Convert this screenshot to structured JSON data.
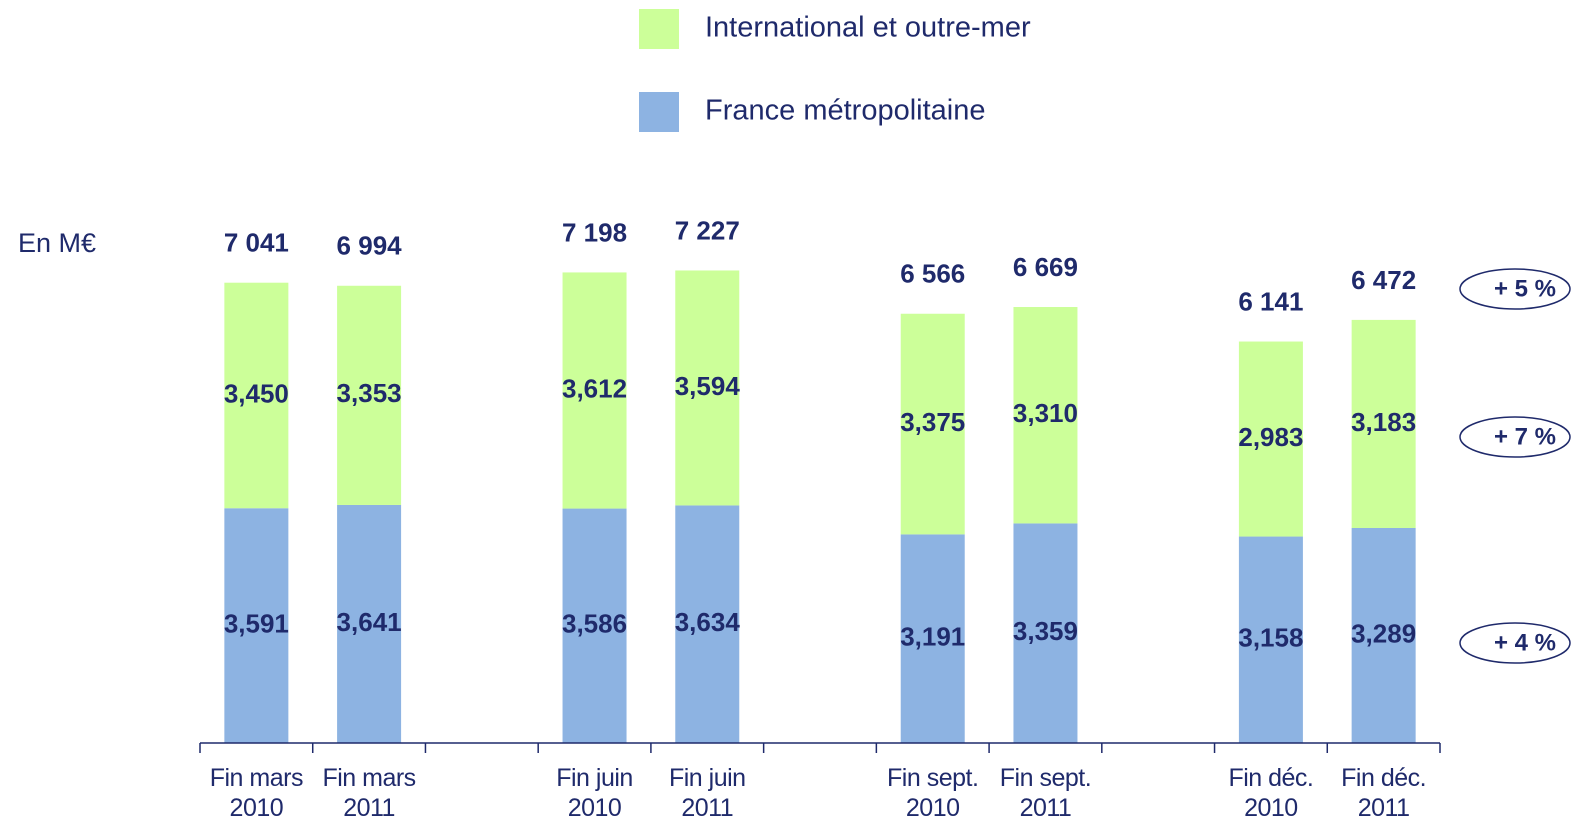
{
  "chart_data": {
    "type": "stacked_bar",
    "y_label": "En M€",
    "categories": [
      "Fin mars 2010",
      "Fin mars 2011",
      null,
      "Fin juin 2010",
      "Fin juin 2011",
      null,
      "Fin sept. 2010",
      "Fin sept. 2011",
      null,
      "Fin déc. 2010",
      "Fin déc. 2011"
    ],
    "series": [
      {
        "name": "France métropolitaine",
        "color": "#8db3e2",
        "values": [
          3591,
          3641,
          null,
          3586,
          3634,
          null,
          3191,
          3359,
          null,
          3158,
          3289
        ],
        "value_labels": [
          "3,591",
          "3,641",
          null,
          "3,586",
          "3,634",
          null,
          "3,191",
          "3,359",
          null,
          "3,158",
          "3,289"
        ]
      },
      {
        "name": "International et outre-mer",
        "color": "#ccff99",
        "values": [
          3450,
          3353,
          null,
          3612,
          3594,
          null,
          3375,
          3310,
          null,
          2983,
          3183
        ],
        "value_labels": [
          "3,450",
          "3,353",
          null,
          "3,612",
          "3,594",
          null,
          "3,375",
          "3,310",
          null,
          "2,983",
          "3,183"
        ]
      }
    ],
    "totals": [
      7041,
      6994,
      null,
      7198,
      7227,
      null,
      6566,
      6669,
      null,
      6141,
      6472
    ],
    "total_labels": [
      "7 041",
      "6 994",
      null,
      "7 198",
      "7 227",
      null,
      "6 566",
      "6 669",
      null,
      "6 141",
      "6 472"
    ],
    "annotations": [
      "+ 5 %",
      "+ 7 %",
      "+ 4 %"
    ],
    "ylim": [
      0,
      8000
    ]
  }
}
